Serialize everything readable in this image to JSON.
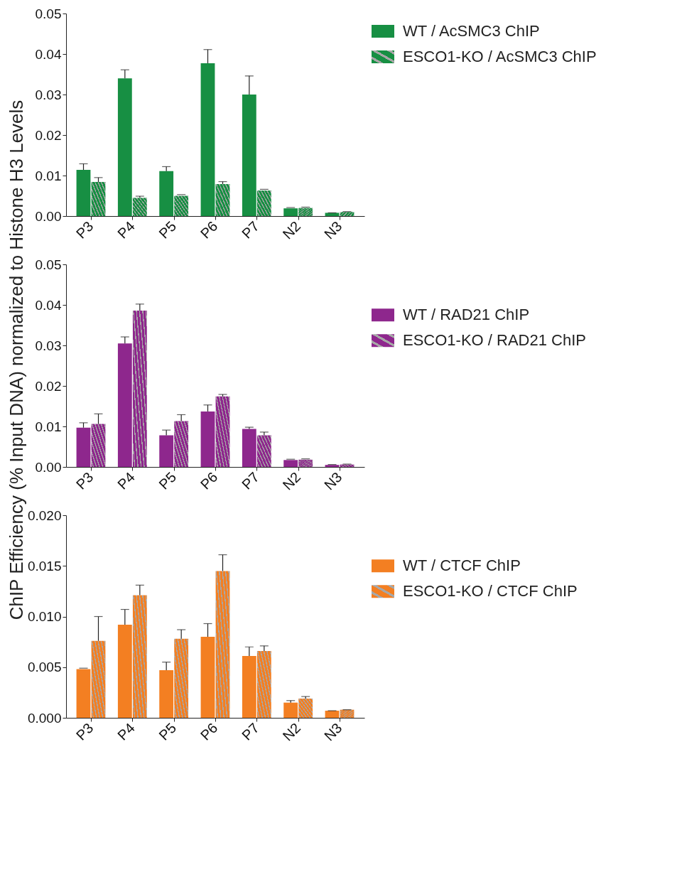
{
  "chart_data": [
    {
      "type": "bar",
      "categories": [
        "P3",
        "P4",
        "P5",
        "P6",
        "P7",
        "N2",
        "N3"
      ],
      "ylim": [
        0,
        0.05
      ],
      "yticks": [
        {
          "value": 0,
          "label": "0.00"
        },
        0.01,
        0.02,
        0.03,
        0.04,
        0.05
      ],
      "grid": false,
      "legend": "top right",
      "series": [
        {
          "name": "WT / AcSMC3 ChIP",
          "color": "#178f43",
          "values": [
            0.0114,
            0.034,
            0.0111,
            0.0377,
            0.03,
            0.0019,
            0.0008
          ],
          "errors": [
            [
              0.0114,
              0.0129
            ],
            [
              0.034,
              0.0361
            ],
            [
              0.0111,
              0.0122
            ],
            [
              0.0377,
              0.0411
            ],
            [
              0.03,
              0.0346
            ],
            [
              0.0019,
              0.0021
            ],
            [
              0.0008,
              0.0008
            ]
          ]
        },
        {
          "name": "ESCO1-KO / AcSMC3 ChIP",
          "color": "#178f43",
          "values": [
            0.0084,
            0.0045,
            0.005,
            0.0079,
            0.0063,
            0.002,
            0.001
          ],
          "errors": [
            [
              0.0084,
              0.0095
            ],
            [
              0.0045,
              0.0049
            ],
            [
              0.005,
              0.0053
            ],
            [
              0.0079,
              0.0085
            ],
            [
              0.0063,
              0.0066
            ],
            [
              0.002,
              0.0022
            ],
            [
              0.001,
              0.0011
            ]
          ]
        }
      ]
    },
    {
      "type": "bar",
      "categories": [
        "P3",
        "P4",
        "P5",
        "P6",
        "P7",
        "N2",
        "N3"
      ],
      "ylim": [
        0,
        0.05
      ],
      "yticks": [
        {
          "value": 0,
          "label": "0.00"
        },
        0.01,
        0.02,
        0.03,
        0.04,
        0.05
      ],
      "grid": false,
      "legend": "right",
      "ylabel": "ChIP Efficiency (% Input DNA)  normalized to Histone H3 Levels",
      "series": [
        {
          "name": "WT / RAD21 ChIP",
          "color": "#8e278d",
          "values": [
            0.0097,
            0.0305,
            0.0078,
            0.0137,
            0.0094,
            0.0017,
            0.0005
          ],
          "errors": [
            [
              0.0097,
              0.0109
            ],
            [
              0.0305,
              0.0321
            ],
            [
              0.0078,
              0.0091
            ],
            [
              0.0137,
              0.0153
            ],
            [
              0.0094,
              0.0098
            ],
            [
              0.0017,
              0.0019
            ],
            [
              0.0005,
              0.0006
            ]
          ]
        },
        {
          "name": "ESCO1-KO / RAD21 ChIP",
          "color": "#8e278d",
          "values": [
            0.0106,
            0.0386,
            0.0113,
            0.0174,
            0.0078,
            0.0018,
            0.0006
          ],
          "errors": [
            [
              0.0106,
              0.0131
            ],
            [
              0.0386,
              0.0402
            ],
            [
              0.0113,
              0.0129
            ],
            [
              0.0174,
              0.0179
            ],
            [
              0.0078,
              0.0086
            ],
            [
              0.0018,
              0.002
            ],
            [
              0.0006,
              0.0007
            ]
          ]
        }
      ]
    },
    {
      "type": "bar",
      "categories": [
        "P3",
        "P4",
        "P5",
        "P6",
        "P7",
        "N2",
        "N3"
      ],
      "ylim": [
        0,
        0.02
      ],
      "yticks": [
        {
          "value": 0,
          "label": "0.000"
        },
        0.005,
        {
          "value": 0.01,
          "label": "0.010"
        },
        0.015,
        {
          "value": 0.02,
          "label": "0.020"
        }
      ],
      "grid": false,
      "legend": "right",
      "series": [
        {
          "name": "WT / CTCF ChIP",
          "color": "#f37f22",
          "values": [
            0.0048,
            0.0092,
            0.0047,
            0.008,
            0.0061,
            0.0015,
            0.0007
          ],
          "errors": [
            [
              0.0048,
              0.0049
            ],
            [
              0.0092,
              0.0107
            ],
            [
              0.0047,
              0.0055
            ],
            [
              0.008,
              0.0093
            ],
            [
              0.0061,
              0.007
            ],
            [
              0.0015,
              0.0017
            ],
            [
              0.0007,
              0.0007
            ]
          ]
        },
        {
          "name": "ESCO1-KO / CTCF ChIP",
          "color": "#f37f22",
          "values": [
            0.0076,
            0.0121,
            0.0078,
            0.0145,
            0.0066,
            0.0019,
            0.0008
          ],
          "errors": [
            [
              0.0076,
              0.01
            ],
            [
              0.0121,
              0.0131
            ],
            [
              0.0078,
              0.0087
            ],
            [
              0.0145,
              0.0161
            ],
            [
              0.0066,
              0.0071
            ],
            [
              0.0019,
              0.0021
            ],
            [
              0.0008,
              0.0008
            ]
          ]
        }
      ]
    }
  ]
}
